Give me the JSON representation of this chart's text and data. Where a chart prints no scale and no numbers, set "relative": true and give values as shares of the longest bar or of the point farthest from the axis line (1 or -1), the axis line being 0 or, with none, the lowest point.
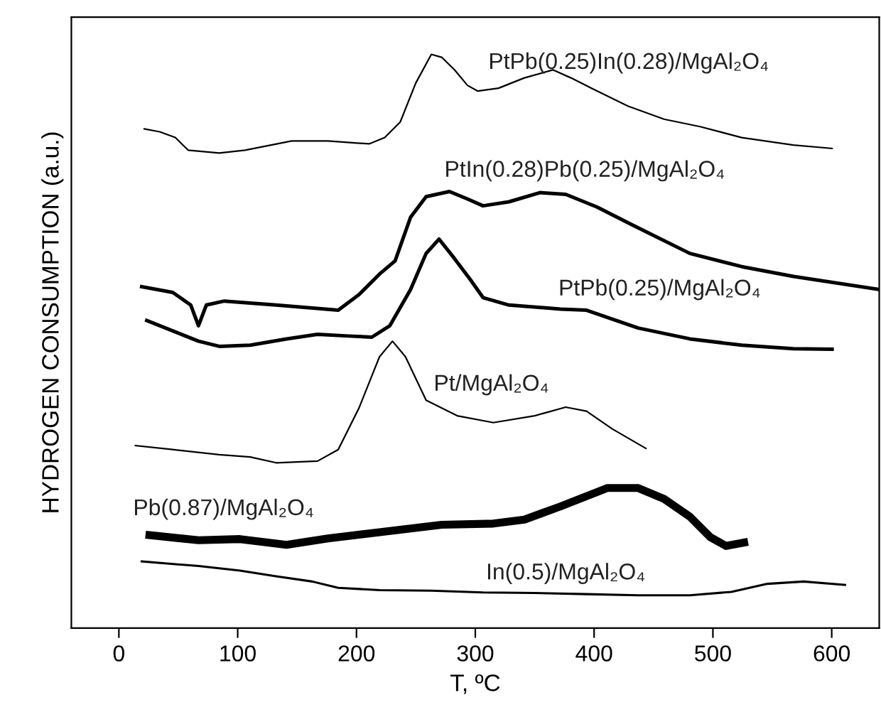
{
  "chart_data": {
    "type": "line",
    "relative": true,
    "xlabel": "T, ºC",
    "ylabel": "HYDROGEN CONSUMPTION (a.u.)",
    "xlim": [
      -40,
      640
    ],
    "xticks": [
      0,
      100,
      200,
      300,
      400,
      500,
      600
    ],
    "grid": false,
    "legend": false,
    "marker": "none",
    "line_style": "solid",
    "series": [
      {
        "name": "PtPb(0.25)In(0.28)/MgAl₂O₄",
        "color": "#000000",
        "x": [
          21.3,
          34.4,
          47.5,
          58.3,
          84.5,
          106.2,
          145.4,
          175.9,
          210.7,
          223.8,
          236.8,
          249.9,
          263,
          271.7,
          282.5,
          293.4,
          302.1,
          319.5,
          341.3,
          365.3,
          380.5,
          397.9,
          428.4,
          458.9,
          489.3,
          524.2,
          567.7,
          600.3
        ],
        "values": [
          0.87,
          0.865,
          0.855,
          0.833,
          0.828,
          0.833,
          0.849,
          0.849,
          0.844,
          0.855,
          0.882,
          0.95,
          1.0,
          0.995,
          0.973,
          0.946,
          0.936,
          0.941,
          0.959,
          0.973,
          0.959,
          0.941,
          0.91,
          0.887,
          0.874,
          0.855,
          0.842,
          0.836
        ]
      },
      {
        "name": "PtIn(0.28)Pb(0.25)/MgAl₂O₄",
        "color": "#000000",
        "x": [
          19.2,
          45.3,
          60.5,
          67,
          73.6,
          88.8,
          132.3,
          184.6,
          202,
          219.4,
          232.5,
          245.5,
          258.6,
          278.2,
          293.4,
          306.5,
          328.3,
          354.4,
          376.1,
          402.3,
          432.7,
          480.6,
          524.2,
          567.7,
          640
        ],
        "values": [
          0.595,
          0.585,
          0.563,
          0.527,
          0.563,
          0.57,
          0.563,
          0.554,
          0.581,
          0.617,
          0.64,
          0.716,
          0.752,
          0.761,
          0.748,
          0.736,
          0.743,
          0.759,
          0.756,
          0.734,
          0.702,
          0.653,
          0.63,
          0.613,
          0.59
        ]
      },
      {
        "name": "PtPb(0.25)/MgAl₂O₄",
        "color": "#000000",
        "x": [
          23.5,
          45.3,
          67,
          84.5,
          110.6,
          141.1,
          167.2,
          193.3,
          212.9,
          228.1,
          245.5,
          258.6,
          269.5,
          282.5,
          295.6,
          306.5,
          328.3,
          371.8,
          393.6,
          437.1,
          480.6,
          524.2,
          567.7,
          600.3
        ],
        "values": [
          0.536,
          0.518,
          0.5,
          0.491,
          0.493,
          0.504,
          0.512,
          0.509,
          0.507,
          0.527,
          0.59,
          0.653,
          0.678,
          0.644,
          0.608,
          0.576,
          0.563,
          0.556,
          0.554,
          0.523,
          0.504,
          0.493,
          0.487,
          0.486
        ]
      },
      {
        "name": "Pt/MgAl₂O₄",
        "color": "#000000",
        "x": [
          13.9,
          45.3,
          84.5,
          110.6,
          132.3,
          167.2,
          184.6,
          202,
          219.4,
          230.3,
          241.2,
          258.6,
          284.7,
          315.2,
          350,
          376.1,
          393.6,
          415.3,
          443.6
        ],
        "values": [
          0.318,
          0.311,
          0.302,
          0.298,
          0.288,
          0.291,
          0.311,
          0.383,
          0.473,
          0.5,
          0.473,
          0.397,
          0.37,
          0.358,
          0.37,
          0.385,
          0.378,
          0.347,
          0.313
        ]
      },
      {
        "name": "Pb(0.87)/MgAl₂O₄",
        "color": "#000000",
        "x": [
          25.7,
          67,
          101.9,
          141.1,
          175.9,
          219.4,
          271.7,
          315.2,
          341.3,
          371.8,
          411,
          437.1,
          458.9,
          480.6,
          498,
          511.1,
          526.3
        ],
        "values": [
          0.162,
          0.153,
          0.155,
          0.145,
          0.156,
          0.167,
          0.18,
          0.182,
          0.189,
          0.212,
          0.244,
          0.244,
          0.225,
          0.194,
          0.158,
          0.143,
          0.149
        ]
      },
      {
        "name": "In(0.5)/MgAl₂O₄",
        "color": "#000000",
        "x": [
          19.2,
          67,
          101.9,
          132.3,
          162.8,
          184.6,
          219.4,
          263,
          306.5,
          350,
          393.6,
          437.1,
          480.6,
          515.5,
          545.9,
          576.4,
          611.2
        ],
        "values": [
          0.116,
          0.108,
          0.1,
          0.09,
          0.081,
          0.07,
          0.066,
          0.065,
          0.062,
          0.061,
          0.059,
          0.057,
          0.057,
          0.063,
          0.077,
          0.081,
          0.075
        ]
      }
    ]
  }
}
